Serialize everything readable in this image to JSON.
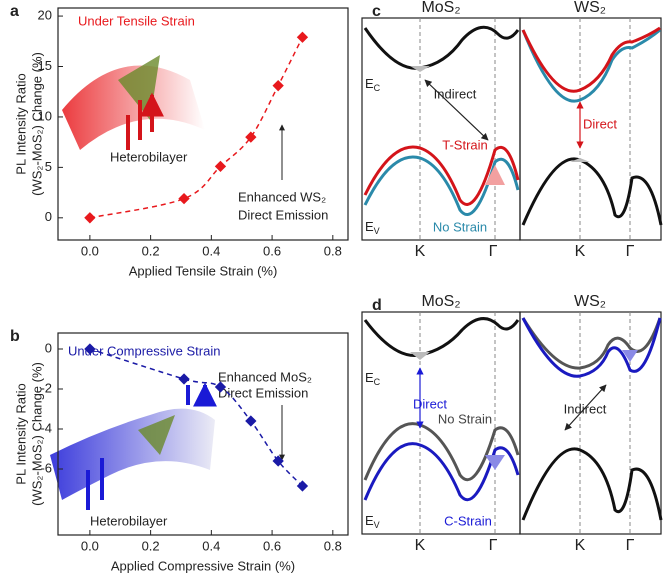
{
  "chart_data": [
    {
      "type": "scatter",
      "panel": "a",
      "title": "Under Tensile Strain",
      "x_label": "Applied Tensile Strain (%)",
      "y_label": [
        "PL Intensity Ratio",
        "(WS₂-MoS₂) Change (%)"
      ],
      "x": [
        0,
        0.31,
        0.43,
        0.53,
        0.62,
        0.7
      ],
      "values": [
        0,
        1.9,
        5.1,
        8.0,
        13.1,
        17.9
      ],
      "color": "#e8191d",
      "xlim": [
        -0.105,
        0.85
      ],
      "ylim": [
        -2.2,
        20.8
      ],
      "xticks": [
        {
          "value": 0,
          "label": "0.0"
        },
        0.2,
        0.4,
        0.6,
        0.8
      ],
      "yticks": [
        0,
        5,
        10,
        15,
        20
      ],
      "annotations": [
        "Heterobilayer",
        "Enhanced WS₂",
        "Direct Emission"
      ]
    },
    {
      "type": "scatter",
      "panel": "b",
      "title": "Under Compressive Strain",
      "x_label": "Applied Compressive Strain (%)",
      "y_label": [
        "PL Intensity Ratio",
        "(WS₂-MoS₂) Change (%)"
      ],
      "x": [
        0,
        0.31,
        0.43,
        0.53,
        0.62,
        0.7
      ],
      "values": [
        0,
        -1.5,
        -1.9,
        -3.6,
        -5.6,
        -6.85
      ],
      "color": "#1a1aa6",
      "xlim": [
        -0.105,
        0.85
      ],
      "ylim": [
        -9.3,
        0.8
      ],
      "xticks": [
        {
          "value": 0,
          "label": "0.0"
        },
        0.2,
        0.4,
        0.6,
        0.8
      ],
      "yticks": [
        -6,
        -4,
        -2,
        0
      ],
      "annotations": [
        "Heterobilayer",
        "Enhanced MoS₂",
        "Direct Emission"
      ]
    }
  ],
  "diagrams": [
    {
      "panel": "c",
      "titles": [
        "MoS₂",
        "WS₂"
      ],
      "ec": {
        "main": "E",
        "sub": "C"
      },
      "ev": {
        "main": "E",
        "sub": "V"
      },
      "labels": [
        "Indirect",
        "T-Strain",
        "No Strain",
        "Direct"
      ],
      "k_points": [
        "K",
        "Γ",
        "K",
        "Γ"
      ]
    },
    {
      "panel": "d",
      "titles": [
        "MoS₂",
        "WS₂"
      ],
      "ec": {
        "main": "E",
        "sub": "C"
      },
      "ev": {
        "main": "E",
        "sub": "V"
      },
      "labels": [
        "Direct",
        "No Strain",
        "C-Strain",
        "Indirect"
      ],
      "k_points": [
        "K",
        "Γ",
        "K",
        "Γ"
      ]
    }
  ]
}
